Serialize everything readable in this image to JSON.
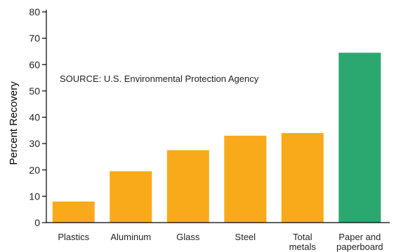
{
  "chart_data": {
    "type": "bar",
    "ylabel": "Percent Recovery",
    "xlabel": "",
    "ylim": [
      0,
      80
    ],
    "yticks": [
      0,
      10,
      20,
      30,
      40,
      50,
      60,
      70,
      80
    ],
    "annotation": "SOURCE: U.S. Environmental Protection Agency",
    "categories": [
      [
        "Plastics"
      ],
      [
        "Aluminum"
      ],
      [
        "Glass"
      ],
      [
        "Steel"
      ],
      [
        "Total",
        "metals"
      ],
      [
        "Paper and",
        "paperboard"
      ]
    ],
    "values": [
      8,
      19.5,
      27.5,
      33,
      34,
      64.5
    ],
    "colors": [
      "#F9AA1A",
      "#F9AA1A",
      "#F9AA1A",
      "#F9AA1A",
      "#F9AA1A",
      "#2BA86F"
    ],
    "grid": false
  }
}
